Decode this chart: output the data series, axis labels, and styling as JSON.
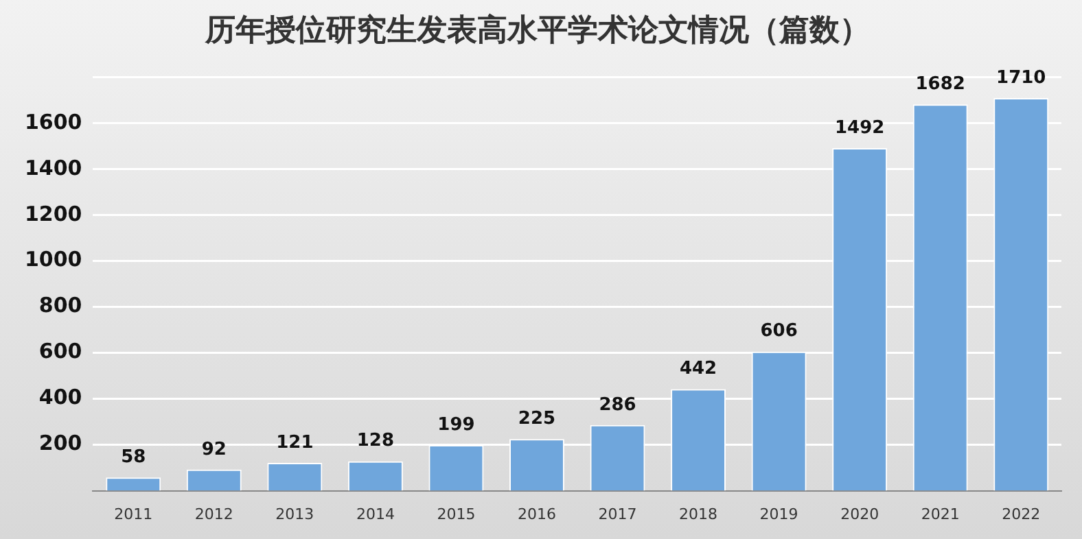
{
  "chart_data": {
    "type": "bar",
    "title": "历年授位研究生发表高水平学术论文情况（篇数）",
    "categories": [
      "2011",
      "2012",
      "2013",
      "2014",
      "2015",
      "2016",
      "2017",
      "2018",
      "2019",
      "2020",
      "2021",
      "2022"
    ],
    "values": [
      58,
      92,
      121,
      128,
      199,
      225,
      286,
      442,
      606,
      1492,
      1682,
      1710
    ],
    "color": "#6fa6dc",
    "ylim": [
      0,
      1800
    ],
    "yticks": [
      200,
      400,
      600,
      800,
      1000,
      1200,
      1400,
      1600,
      {
        "value": 1800,
        "label": null
      }
    ],
    "grid": "y",
    "data_labels": true,
    "legend": false
  }
}
